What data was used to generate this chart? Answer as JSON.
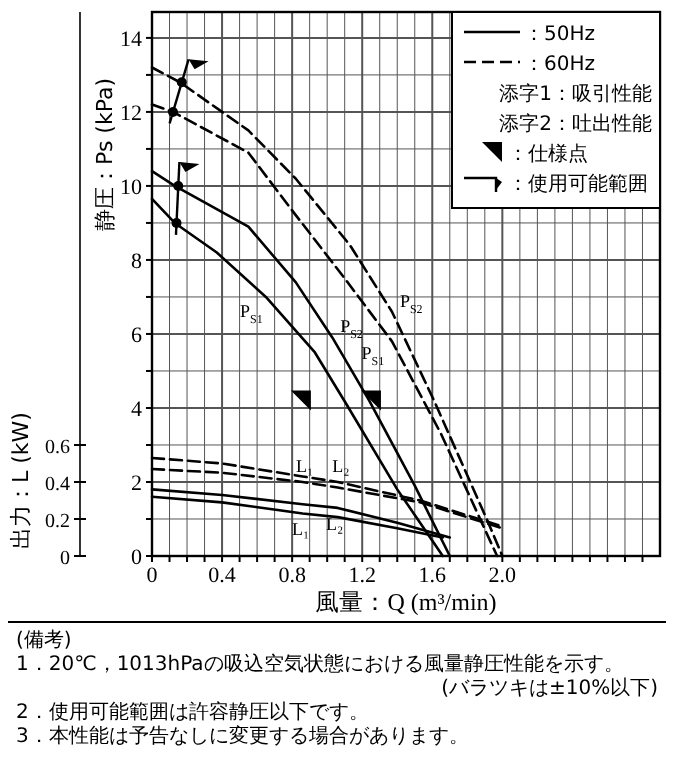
{
  "chart_data": {
    "type": "line",
    "xlabel": "風量：Q (m³/min)",
    "ylabel": "静圧：Ps (kPa)",
    "y2label": "出力：L (kW)",
    "xlim": [
      0,
      2.9
    ],
    "ylim": [
      0,
      14.7
    ],
    "y2lim": [
      0,
      2.94
    ],
    "xticks": [
      0,
      {
        "value": 0.1,
        "label": null
      },
      {
        "value": 0.2,
        "label": null
      },
      {
        "value": 0.3,
        "label": null
      },
      0.4,
      {
        "value": 0.5,
        "label": null
      },
      {
        "value": 0.6,
        "label": null
      },
      {
        "value": 0.7,
        "label": null
      },
      0.8,
      {
        "value": 0.9,
        "label": null
      },
      {
        "value": 1,
        "label": null
      },
      {
        "value": 1.1,
        "label": null
      },
      1.2,
      {
        "value": 1.3,
        "label": null
      },
      {
        "value": 1.4,
        "label": null
      },
      {
        "value": 1.5,
        "label": null
      },
      1.6,
      {
        "value": 1.7,
        "label": null
      },
      {
        "value": 1.8,
        "label": null
      },
      {
        "value": 1.9,
        "label": null
      },
      {
        "value": 2,
        "label": "2.0"
      },
      {
        "value": 2.1,
        "label": null
      },
      {
        "value": 2.2,
        "label": null
      },
      {
        "value": 2.3,
        "label": null
      },
      {
        "value": 2.4,
        "label": null
      },
      {
        "value": 2.5,
        "label": null
      },
      {
        "value": 2.6,
        "label": null
      },
      {
        "value": 2.7,
        "label": null
      },
      {
        "value": 2.8,
        "label": null
      }
    ],
    "yticks": [
      0,
      {
        "value": 1,
        "label": null
      },
      2,
      {
        "value": 3,
        "label": null
      },
      4,
      {
        "value": 5,
        "label": null
      },
      6,
      {
        "value": 7,
        "label": null
      },
      8,
      {
        "value": 9,
        "label": null
      },
      10,
      {
        "value": 11,
        "label": null
      },
      12,
      {
        "value": 13,
        "label": null
      },
      14
    ],
    "y2ticks": [
      0,
      0.2,
      0.4,
      0.6
    ],
    "grid": true,
    "legend": "top right",
    "series": [
      {
        "axis": "y",
        "line_style": "solid",
        "color": "#000000",
        "x": [
          0,
          0.13,
          0.37,
          0.65,
          0.93,
          1.11,
          1.4,
          1.66
        ],
        "values": [
          9.65,
          9.0,
          8.2,
          7.0,
          5.5,
          4.1,
          1.8,
          0
        ]
      },
      {
        "axis": "y",
        "line_style": "solid",
        "color": "#000000",
        "x": [
          0,
          0.13,
          0.55,
          0.82,
          1.03,
          1.24,
          1.5,
          1.7
        ],
        "values": [
          10.4,
          10.0,
          8.9,
          7.4,
          5.9,
          4.2,
          1.9,
          0
        ]
      },
      {
        "axis": "y",
        "line_style": "dashed",
        "color": "#000000",
        "x": [
          0,
          0.12,
          0.55,
          0.79,
          1.1,
          1.37,
          1.65,
          1.97
        ],
        "values": [
          12.2,
          12.0,
          10.9,
          9.4,
          7.5,
          5.8,
          3.3,
          0
        ]
      },
      {
        "axis": "y",
        "line_style": "dashed",
        "color": "#000000",
        "x": [
          0,
          0.16,
          0.55,
          0.82,
          1.13,
          1.37,
          1.61,
          1.92,
          2.0
        ],
        "values": [
          13.2,
          12.8,
          11.5,
          10.2,
          8.4,
          6.6,
          4.2,
          0.9,
          0
        ]
      },
      {
        "axis": "y2",
        "line_style": "solid",
        "color": "#000000",
        "x": [
          0,
          0.4,
          0.86,
          1.06,
          1.4,
          1.66
        ],
        "values": [
          0.32,
          0.29,
          0.23,
          0.21,
          0.15,
          0.1
        ]
      },
      {
        "axis": "y2",
        "line_style": "solid",
        "color": "#000000",
        "x": [
          0,
          0.4,
          0.86,
          1.06,
          1.4,
          1.7
        ],
        "values": [
          0.36,
          0.33,
          0.28,
          0.26,
          0.18,
          0.1
        ]
      },
      {
        "axis": "y2",
        "line_style": "dashed",
        "color": "#000000",
        "x": [
          0,
          0.4,
          0.86,
          1.06,
          1.53,
          2.0
        ],
        "values": [
          0.47,
          0.45,
          0.4,
          0.37,
          0.29,
          0.15
        ]
      },
      {
        "axis": "y2",
        "line_style": "dashed",
        "color": "#000000",
        "x": [
          0,
          0.4,
          0.86,
          1.06,
          1.53,
          2.0
        ],
        "values": [
          0.53,
          0.5,
          0.43,
          0.4,
          0.3,
          0.16
        ]
      },
      {
        "type": "scatter",
        "name": "：仕様点",
        "axis": "y",
        "marker": "triangle",
        "color": "#000000",
        "x": [
          0.85,
          1.25
        ],
        "values": [
          4.2,
          4.2
        ]
      },
      {
        "type": "scatter",
        "axis": "y",
        "marker": "circle",
        "color": "#000000",
        "x": [
          0.17,
          0.12,
          0.15,
          0.14
        ],
        "values": [
          12.8,
          12.0,
          10.0,
          9.0
        ]
      }
    ],
    "annotations": [
      "：50Hz",
      "：60Hz",
      "添字1：吸引性能",
      "添字2：吐出性能",
      "：使用可能範囲",
      "(備考)",
      "1．20℃，1013hPaの吸込空気状態における風量静圧性能を示す。",
      "(バラツキは±10%以下)",
      "2．使用可能範囲は許容静圧以下です。",
      "3．本性能は予告なしに変更する場合があります。",
      {
        "text": "P$_{S1}$",
        "x": 0.65,
        "y": 7.0
      },
      {
        "text": "P$_{S2}$",
        "x": 1.03,
        "y": 5.9
      },
      {
        "text": "P$_{S1}$",
        "x": 1.37,
        "y": 5.8
      },
      {
        "text": "P$_{S2}$",
        "x": 1.37,
        "y": 6.6
      },
      {
        "text": "L₂",
        "x": 1.06,
        "y": 2.0
      },
      {
        "text": "L₁",
        "x": 0.86,
        "y": 2.0
      },
      {
        "text": "L₂",
        "x": 1.06,
        "y": 1.3
      },
      {
        "text": "L₁",
        "x": 0.86,
        "y": 1.15
      }
    ]
  }
}
